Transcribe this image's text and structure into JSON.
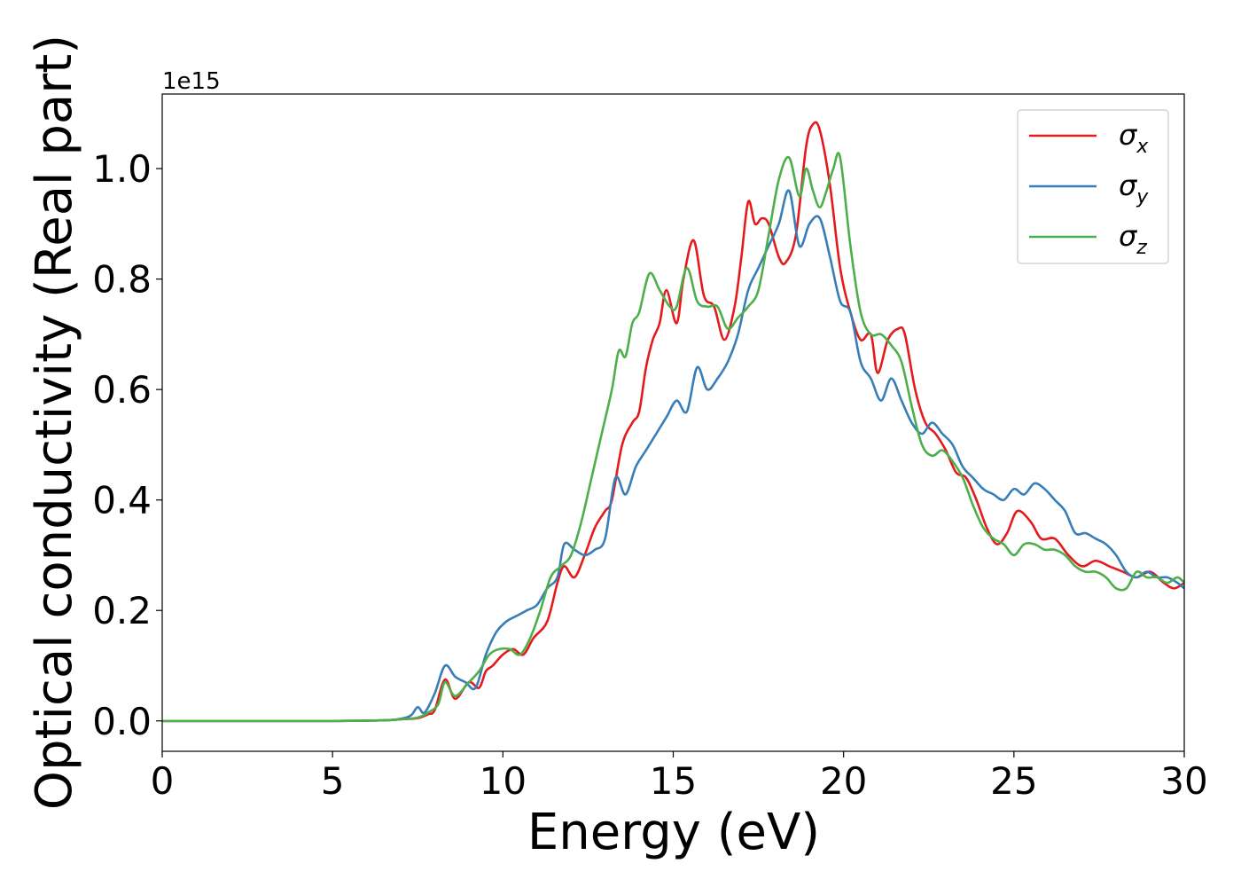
{
  "chart_data": {
    "type": "line",
    "title": "",
    "xlabel": "Energy (eV)",
    "ylabel": "Optical conductivity (Real part)",
    "offset_text": "1e15",
    "xlim": [
      0,
      30
    ],
    "ylim": [
      -0.055,
      1.135
    ],
    "x_ticks": [
      0,
      5,
      10,
      15,
      20,
      25,
      30
    ],
    "x_tick_labels": [
      "0",
      "5",
      "10",
      "15",
      "20",
      "25",
      "30"
    ],
    "y_ticks": [
      0.0,
      0.2,
      0.4,
      0.6,
      0.8,
      1.0
    ],
    "y_tick_labels": [
      "0.0",
      "0.2",
      "0.4",
      "0.6",
      "0.8",
      "1.0"
    ],
    "grid": false,
    "legend": "top-right",
    "series": [
      {
        "name_base": "σ",
        "name_sub": "x",
        "color": "#e41a1c",
        "points": [
          [
            0,
            0
          ],
          [
            5,
            0
          ],
          [
            6.5,
            0.001
          ],
          [
            7,
            0.003
          ],
          [
            7.5,
            0.005
          ],
          [
            7.8,
            0.012
          ],
          [
            8,
            0.02
          ],
          [
            8.3,
            0.075
          ],
          [
            8.6,
            0.04
          ],
          [
            9,
            0.07
          ],
          [
            9.3,
            0.06
          ],
          [
            9.5,
            0.09
          ],
          [
            9.7,
            0.1
          ],
          [
            10,
            0.12
          ],
          [
            10.3,
            0.13
          ],
          [
            10.6,
            0.12
          ],
          [
            10.9,
            0.15
          ],
          [
            11.3,
            0.18
          ],
          [
            11.6,
            0.25
          ],
          [
            11.8,
            0.28
          ],
          [
            12.1,
            0.26
          ],
          [
            12.4,
            0.3
          ],
          [
            12.7,
            0.35
          ],
          [
            13,
            0.38
          ],
          [
            13.2,
            0.4
          ],
          [
            13.5,
            0.5
          ],
          [
            13.8,
            0.54
          ],
          [
            14,
            0.56
          ],
          [
            14.2,
            0.64
          ],
          [
            14.4,
            0.69
          ],
          [
            14.6,
            0.72
          ],
          [
            14.8,
            0.78
          ],
          [
            15.1,
            0.72
          ],
          [
            15.3,
            0.8
          ],
          [
            15.6,
            0.87
          ],
          [
            15.9,
            0.77
          ],
          [
            16.2,
            0.75
          ],
          [
            16.5,
            0.69
          ],
          [
            16.8,
            0.75
          ],
          [
            17.0,
            0.84
          ],
          [
            17.2,
            0.94
          ],
          [
            17.4,
            0.9
          ],
          [
            17.6,
            0.91
          ],
          [
            17.8,
            0.9
          ],
          [
            18.1,
            0.84
          ],
          [
            18.3,
            0.83
          ],
          [
            18.6,
            0.88
          ],
          [
            18.9,
            1.04
          ],
          [
            19.1,
            1.08
          ],
          [
            19.3,
            1.07
          ],
          [
            19.6,
            0.97
          ],
          [
            19.9,
            0.82
          ],
          [
            20.2,
            0.74
          ],
          [
            20.5,
            0.69
          ],
          [
            20.8,
            0.7
          ],
          [
            21.0,
            0.63
          ],
          [
            21.3,
            0.69
          ],
          [
            21.6,
            0.71
          ],
          [
            21.8,
            0.7
          ],
          [
            22.1,
            0.6
          ],
          [
            22.4,
            0.54
          ],
          [
            22.7,
            0.52
          ],
          [
            23.0,
            0.49
          ],
          [
            23.3,
            0.45
          ],
          [
            23.6,
            0.44
          ],
          [
            23.9,
            0.4
          ],
          [
            24.2,
            0.35
          ],
          [
            24.5,
            0.32
          ],
          [
            24.8,
            0.34
          ],
          [
            25.1,
            0.38
          ],
          [
            25.5,
            0.36
          ],
          [
            25.8,
            0.33
          ],
          [
            26.2,
            0.33
          ],
          [
            26.6,
            0.3
          ],
          [
            27.0,
            0.28
          ],
          [
            27.4,
            0.29
          ],
          [
            27.8,
            0.28
          ],
          [
            28.2,
            0.27
          ],
          [
            28.6,
            0.26
          ],
          [
            29.0,
            0.27
          ],
          [
            29.4,
            0.25
          ],
          [
            29.7,
            0.24
          ],
          [
            30,
            0.25
          ]
        ]
      },
      {
        "name_base": "σ",
        "name_sub": "y",
        "color": "#377eb8",
        "points": [
          [
            0,
            0
          ],
          [
            5,
            0
          ],
          [
            6.5,
            0.001
          ],
          [
            7,
            0.004
          ],
          [
            7.3,
            0.01
          ],
          [
            7.5,
            0.025
          ],
          [
            7.7,
            0.015
          ],
          [
            8,
            0.05
          ],
          [
            8.3,
            0.1
          ],
          [
            8.6,
            0.08
          ],
          [
            8.9,
            0.07
          ],
          [
            9.2,
            0.06
          ],
          [
            9.5,
            0.12
          ],
          [
            9.8,
            0.16
          ],
          [
            10.1,
            0.18
          ],
          [
            10.4,
            0.19
          ],
          [
            10.7,
            0.2
          ],
          [
            11,
            0.21
          ],
          [
            11.3,
            0.24
          ],
          [
            11.6,
            0.26
          ],
          [
            11.8,
            0.32
          ],
          [
            12.1,
            0.31
          ],
          [
            12.4,
            0.3
          ],
          [
            12.7,
            0.31
          ],
          [
            13,
            0.33
          ],
          [
            13.3,
            0.44
          ],
          [
            13.6,
            0.41
          ],
          [
            13.9,
            0.46
          ],
          [
            14.2,
            0.49
          ],
          [
            14.5,
            0.52
          ],
          [
            14.8,
            0.55
          ],
          [
            15.1,
            0.58
          ],
          [
            15.4,
            0.56
          ],
          [
            15.7,
            0.64
          ],
          [
            16,
            0.6
          ],
          [
            16.3,
            0.62
          ],
          [
            16.6,
            0.65
          ],
          [
            16.9,
            0.7
          ],
          [
            17.2,
            0.78
          ],
          [
            17.5,
            0.82
          ],
          [
            17.8,
            0.86
          ],
          [
            18.1,
            0.9
          ],
          [
            18.4,
            0.96
          ],
          [
            18.7,
            0.86
          ],
          [
            19.0,
            0.9
          ],
          [
            19.3,
            0.91
          ],
          [
            19.6,
            0.84
          ],
          [
            19.9,
            0.76
          ],
          [
            20.2,
            0.74
          ],
          [
            20.5,
            0.65
          ],
          [
            20.8,
            0.62
          ],
          [
            21.1,
            0.58
          ],
          [
            21.4,
            0.62
          ],
          [
            21.7,
            0.58
          ],
          [
            22.0,
            0.54
          ],
          [
            22.3,
            0.52
          ],
          [
            22.6,
            0.54
          ],
          [
            22.9,
            0.52
          ],
          [
            23.2,
            0.5
          ],
          [
            23.5,
            0.46
          ],
          [
            23.8,
            0.44
          ],
          [
            24.1,
            0.42
          ],
          [
            24.4,
            0.41
          ],
          [
            24.7,
            0.4
          ],
          [
            25.0,
            0.42
          ],
          [
            25.3,
            0.41
          ],
          [
            25.6,
            0.43
          ],
          [
            25.9,
            0.42
          ],
          [
            26.2,
            0.4
          ],
          [
            26.5,
            0.38
          ],
          [
            26.8,
            0.34
          ],
          [
            27.1,
            0.34
          ],
          [
            27.4,
            0.33
          ],
          [
            27.7,
            0.32
          ],
          [
            28.0,
            0.3
          ],
          [
            28.3,
            0.27
          ],
          [
            28.6,
            0.26
          ],
          [
            28.9,
            0.27
          ],
          [
            29.2,
            0.26
          ],
          [
            29.5,
            0.26
          ],
          [
            29.8,
            0.25
          ],
          [
            30,
            0.24
          ]
        ]
      },
      {
        "name_base": "σ",
        "name_sub": "z",
        "color": "#4daf4a",
        "points": [
          [
            0,
            0
          ],
          [
            5,
            0
          ],
          [
            6.5,
            0.001
          ],
          [
            7,
            0.003
          ],
          [
            7.5,
            0.006
          ],
          [
            7.8,
            0.015
          ],
          [
            8.1,
            0.03
          ],
          [
            8.3,
            0.07
          ],
          [
            8.6,
            0.045
          ],
          [
            9,
            0.07
          ],
          [
            9.3,
            0.09
          ],
          [
            9.6,
            0.12
          ],
          [
            9.9,
            0.13
          ],
          [
            10.2,
            0.13
          ],
          [
            10.5,
            0.12
          ],
          [
            10.8,
            0.15
          ],
          [
            11.1,
            0.2
          ],
          [
            11.4,
            0.26
          ],
          [
            11.7,
            0.28
          ],
          [
            12.0,
            0.3
          ],
          [
            12.3,
            0.36
          ],
          [
            12.6,
            0.44
          ],
          [
            12.9,
            0.52
          ],
          [
            13.2,
            0.6
          ],
          [
            13.4,
            0.67
          ],
          [
            13.6,
            0.66
          ],
          [
            13.8,
            0.72
          ],
          [
            14.0,
            0.74
          ],
          [
            14.3,
            0.81
          ],
          [
            14.6,
            0.78
          ],
          [
            14.9,
            0.75
          ],
          [
            15.1,
            0.75
          ],
          [
            15.4,
            0.82
          ],
          [
            15.7,
            0.76
          ],
          [
            16.0,
            0.75
          ],
          [
            16.3,
            0.75
          ],
          [
            16.6,
            0.71
          ],
          [
            16.9,
            0.73
          ],
          [
            17.2,
            0.75
          ],
          [
            17.5,
            0.78
          ],
          [
            17.8,
            0.88
          ],
          [
            18.1,
            0.98
          ],
          [
            18.4,
            1.02
          ],
          [
            18.7,
            0.95
          ],
          [
            18.9,
            1.0
          ],
          [
            19.1,
            0.96
          ],
          [
            19.3,
            0.93
          ],
          [
            19.5,
            0.96
          ],
          [
            19.7,
            1.0
          ],
          [
            19.9,
            1.02
          ],
          [
            20.2,
            0.86
          ],
          [
            20.5,
            0.74
          ],
          [
            20.8,
            0.7
          ],
          [
            21.1,
            0.7
          ],
          [
            21.4,
            0.68
          ],
          [
            21.7,
            0.65
          ],
          [
            22.0,
            0.57
          ],
          [
            22.3,
            0.5
          ],
          [
            22.6,
            0.48
          ],
          [
            22.9,
            0.49
          ],
          [
            23.2,
            0.47
          ],
          [
            23.5,
            0.44
          ],
          [
            23.8,
            0.39
          ],
          [
            24.1,
            0.35
          ],
          [
            24.4,
            0.33
          ],
          [
            24.7,
            0.32
          ],
          [
            25.0,
            0.3
          ],
          [
            25.3,
            0.32
          ],
          [
            25.6,
            0.32
          ],
          [
            25.9,
            0.31
          ],
          [
            26.2,
            0.31
          ],
          [
            26.5,
            0.3
          ],
          [
            26.8,
            0.28
          ],
          [
            27.1,
            0.27
          ],
          [
            27.4,
            0.27
          ],
          [
            27.7,
            0.26
          ],
          [
            28.0,
            0.24
          ],
          [
            28.3,
            0.24
          ],
          [
            28.6,
            0.27
          ],
          [
            28.9,
            0.26
          ],
          [
            29.2,
            0.26
          ],
          [
            29.5,
            0.25
          ],
          [
            29.8,
            0.26
          ],
          [
            30,
            0.25
          ]
        ]
      }
    ]
  }
}
